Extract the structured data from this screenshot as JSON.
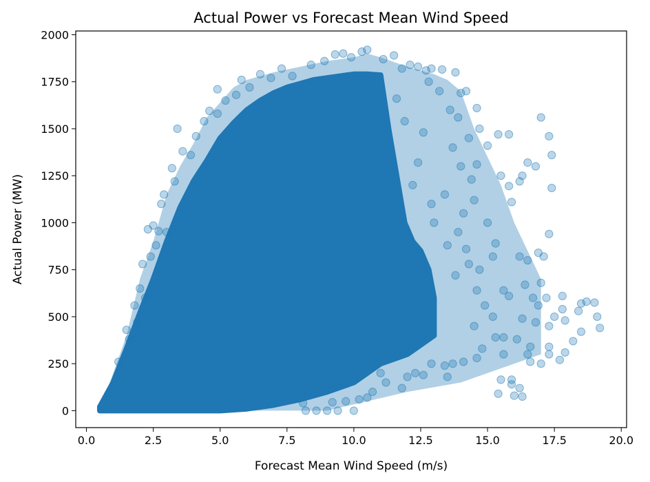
{
  "chart_data": {
    "type": "scatter",
    "title": "Actual Power vs Forecast Mean Wind Speed",
    "xlabel": "Forecast Mean Wind Speed (m/s)",
    "ylabel": "Actual Power (MW)",
    "xlim": [
      -0.4,
      20.2
    ],
    "ylim": [
      -90,
      2020
    ],
    "xticks": [
      0.0,
      2.5,
      5.0,
      7.5,
      10.0,
      12.5,
      15.0,
      17.5,
      20.0
    ],
    "xtick_labels": [
      "0.0",
      "2.5",
      "5.0",
      "7.5",
      "10.0",
      "12.5",
      "15.0",
      "17.5",
      "20.0"
    ],
    "yticks": [
      0,
      250,
      500,
      750,
      1000,
      1250,
      1500,
      1750,
      2000
    ],
    "ytick_labels": [
      "0",
      "250",
      "500",
      "750",
      "1000",
      "1250",
      "1500",
      "1750",
      "2000"
    ],
    "grid": false,
    "marker_color": "#1f77b4",
    "marker_alpha": 0.3,
    "dense_envelope": {
      "upper": [
        [
          0.5,
          20
        ],
        [
          1.0,
          150
        ],
        [
          1.5,
          330
        ],
        [
          2.0,
          520
        ],
        [
          2.5,
          700
        ],
        [
          3.0,
          900
        ],
        [
          3.5,
          1080
        ],
        [
          4.0,
          1220
        ],
        [
          4.5,
          1330
        ],
        [
          5.0,
          1450
        ],
        [
          5.5,
          1530
        ],
        [
          6.0,
          1600
        ],
        [
          6.5,
          1650
        ],
        [
          7.0,
          1690
        ],
        [
          7.5,
          1720
        ],
        [
          8.0,
          1740
        ],
        [
          8.5,
          1760
        ],
        [
          9.0,
          1770
        ],
        [
          9.5,
          1780
        ],
        [
          10.0,
          1790
        ],
        [
          10.5,
          1790
        ],
        [
          11.0,
          1785
        ],
        [
          11.3,
          1500
        ],
        [
          11.6,
          1250
        ],
        [
          11.9,
          1000
        ],
        [
          12.2,
          900
        ],
        [
          12.5,
          850
        ],
        [
          12.8,
          750
        ],
        [
          13.0,
          600
        ],
        [
          13.0,
          400
        ]
      ],
      "lower": [
        [
          13.0,
          400
        ],
        [
          12.0,
          300
        ],
        [
          11.0,
          250
        ],
        [
          10.5,
          200
        ],
        [
          10.0,
          150
        ],
        [
          9.0,
          100
        ],
        [
          8.0,
          60
        ],
        [
          7.0,
          30
        ],
        [
          6.0,
          10
        ],
        [
          5.0,
          0
        ],
        [
          3.0,
          0
        ],
        [
          1.0,
          0
        ],
        [
          0.5,
          0
        ]
      ]
    },
    "outer_band_upper": [
      [
        1.5,
        400
      ],
      [
        2.0,
        700
      ],
      [
        2.5,
        900
      ],
      [
        3.0,
        1150
      ],
      [
        3.5,
        1300
      ],
      [
        4.0,
        1420
      ],
      [
        4.5,
        1560
      ],
      [
        5.0,
        1640
      ],
      [
        5.5,
        1720
      ],
      [
        6.0,
        1760
      ],
      [
        7.0,
        1800
      ],
      [
        8.0,
        1830
      ],
      [
        9.0,
        1860
      ],
      [
        10.0,
        1880
      ],
      [
        10.5,
        1900
      ],
      [
        11.0,
        1880
      ],
      [
        12.0,
        1830
      ],
      [
        13.0,
        1790
      ],
      [
        13.5,
        1760
      ],
      [
        14.0,
        1700
      ],
      [
        14.5,
        1500
      ],
      [
        15.0,
        1350
      ],
      [
        15.5,
        1200
      ],
      [
        16.0,
        1000
      ],
      [
        16.5,
        850
      ],
      [
        17.0,
        700
      ]
    ],
    "points": [
      [
        10.5,
        1920
      ],
      [
        10.3,
        1910
      ],
      [
        9.6,
        1900
      ],
      [
        9.3,
        1895
      ],
      [
        11.5,
        1890
      ],
      [
        9.9,
        1880
      ],
      [
        12.1,
        1840
      ],
      [
        12.9,
        1820
      ],
      [
        13.3,
        1815
      ],
      [
        13.8,
        1800
      ],
      [
        7.3,
        1820
      ],
      [
        6.5,
        1790
      ],
      [
        5.8,
        1760
      ],
      [
        4.9,
        1710
      ],
      [
        4.6,
        1595
      ],
      [
        4.9,
        1580
      ],
      [
        3.4,
        1500
      ],
      [
        4.1,
        1460
      ],
      [
        3.2,
        1290
      ],
      [
        2.8,
        1100
      ],
      [
        2.5,
        985
      ],
      [
        2.3,
        965
      ],
      [
        2.7,
        955
      ],
      [
        3.0,
        950
      ],
      [
        2.1,
        780
      ],
      [
        2.2,
        600
      ],
      [
        1.9,
        470
      ],
      [
        1.5,
        430
      ],
      [
        1.6,
        380
      ],
      [
        1.2,
        260
      ],
      [
        14.0,
        1690
      ],
      [
        14.2,
        1700
      ],
      [
        14.6,
        1610
      ],
      [
        14.7,
        1500
      ],
      [
        15.0,
        1410
      ],
      [
        15.4,
        1470
      ],
      [
        15.8,
        1470
      ],
      [
        16.5,
        1320
      ],
      [
        16.8,
        1300
      ],
      [
        16.3,
        1250
      ],
      [
        17.0,
        1560
      ],
      [
        17.3,
        1460
      ],
      [
        17.4,
        1360
      ],
      [
        17.4,
        1185
      ],
      [
        15.8,
        1195
      ],
      [
        15.9,
        1110
      ],
      [
        16.2,
        1220
      ],
      [
        15.5,
        1250
      ],
      [
        14.4,
        1230
      ],
      [
        14.6,
        1310
      ],
      [
        14.1,
        1050
      ],
      [
        14.5,
        1120
      ],
      [
        15.0,
        1000
      ],
      [
        15.3,
        890
      ],
      [
        15.2,
        820
      ],
      [
        16.2,
        820
      ],
      [
        16.5,
        800
      ],
      [
        16.9,
        840
      ],
      [
        17.1,
        820
      ],
      [
        17.3,
        940
      ],
      [
        14.3,
        780
      ],
      [
        14.7,
        750
      ],
      [
        15.6,
        640
      ],
      [
        15.8,
        610
      ],
      [
        16.4,
        670
      ],
      [
        16.7,
        600
      ],
      [
        17.0,
        680
      ],
      [
        17.2,
        600
      ],
      [
        16.9,
        560
      ],
      [
        17.8,
        610
      ],
      [
        17.5,
        500
      ],
      [
        17.3,
        450
      ],
      [
        17.9,
        480
      ],
      [
        18.5,
        570
      ],
      [
        18.7,
        580
      ],
      [
        19.0,
        575
      ],
      [
        18.4,
        530
      ],
      [
        19.1,
        500
      ],
      [
        19.2,
        440
      ],
      [
        18.5,
        420
      ],
      [
        18.2,
        370
      ],
      [
        17.9,
        310
      ],
      [
        17.3,
        340
      ],
      [
        17.0,
        250
      ],
      [
        17.3,
        300
      ],
      [
        17.7,
        270
      ],
      [
        16.6,
        340
      ],
      [
        16.5,
        300
      ],
      [
        16.6,
        260
      ],
      [
        16.1,
        380
      ],
      [
        15.3,
        390
      ],
      [
        15.6,
        390
      ],
      [
        15.9,
        140
      ],
      [
        15.5,
        165
      ],
      [
        15.4,
        90
      ],
      [
        15.9,
        165
      ],
      [
        16.2,
        120
      ],
      [
        16.0,
        80
      ],
      [
        16.3,
        75
      ],
      [
        15.6,
        300
      ],
      [
        14.8,
        330
      ],
      [
        14.6,
        280
      ],
      [
        14.1,
        260
      ],
      [
        13.7,
        250
      ],
      [
        13.4,
        240
      ],
      [
        12.9,
        250
      ],
      [
        12.6,
        190
      ],
      [
        12.3,
        200
      ],
      [
        12.0,
        180
      ],
      [
        11.8,
        120
      ],
      [
        11.2,
        150
      ],
      [
        10.7,
        100
      ],
      [
        10.5,
        70
      ],
      [
        10.2,
        60
      ],
      [
        10.0,
        0
      ],
      [
        9.4,
        0
      ],
      [
        9.0,
        0
      ],
      [
        8.6,
        0
      ],
      [
        8.2,
        0
      ],
      [
        8.1,
        40
      ],
      [
        9.2,
        45
      ],
      [
        9.7,
        50
      ],
      [
        11.0,
        200
      ],
      [
        13.5,
        180
      ],
      [
        14.5,
        450
      ],
      [
        15.2,
        500
      ],
      [
        16.3,
        490
      ],
      [
        16.8,
        470
      ],
      [
        17.8,
        540
      ],
      [
        14.9,
        560
      ],
      [
        12.7,
        1810
      ],
      [
        12.4,
        1830
      ],
      [
        11.8,
        1820
      ],
      [
        11.1,
        1870
      ],
      [
        8.9,
        1860
      ],
      [
        8.4,
        1840
      ],
      [
        7.7,
        1780
      ],
      [
        6.9,
        1770
      ],
      [
        6.1,
        1720
      ],
      [
        5.6,
        1680
      ],
      [
        5.2,
        1650
      ],
      [
        4.4,
        1540
      ],
      [
        3.9,
        1360
      ],
      [
        3.6,
        1380
      ],
      [
        2.9,
        1150
      ],
      [
        3.3,
        1220
      ],
      [
        2.6,
        880
      ],
      [
        2.4,
        820
      ],
      [
        2.0,
        650
      ],
      [
        1.8,
        560
      ],
      [
        13.6,
        1600
      ],
      [
        13.9,
        1560
      ],
      [
        14.3,
        1450
      ],
      [
        13.2,
        1700
      ],
      [
        12.8,
        1750
      ],
      [
        13.7,
        1400
      ],
      [
        14.0,
        1300
      ],
      [
        13.4,
        1150
      ],
      [
        13.9,
        950
      ],
      [
        13.5,
        880
      ],
      [
        12.9,
        1100
      ],
      [
        12.4,
        1320
      ],
      [
        12.2,
        1200
      ],
      [
        12.6,
        1480
      ],
      [
        11.9,
        1540
      ],
      [
        11.6,
        1660
      ],
      [
        13.0,
        1000
      ],
      [
        14.2,
        860
      ],
      [
        13.8,
        720
      ],
      [
        14.6,
        640
      ]
    ]
  }
}
